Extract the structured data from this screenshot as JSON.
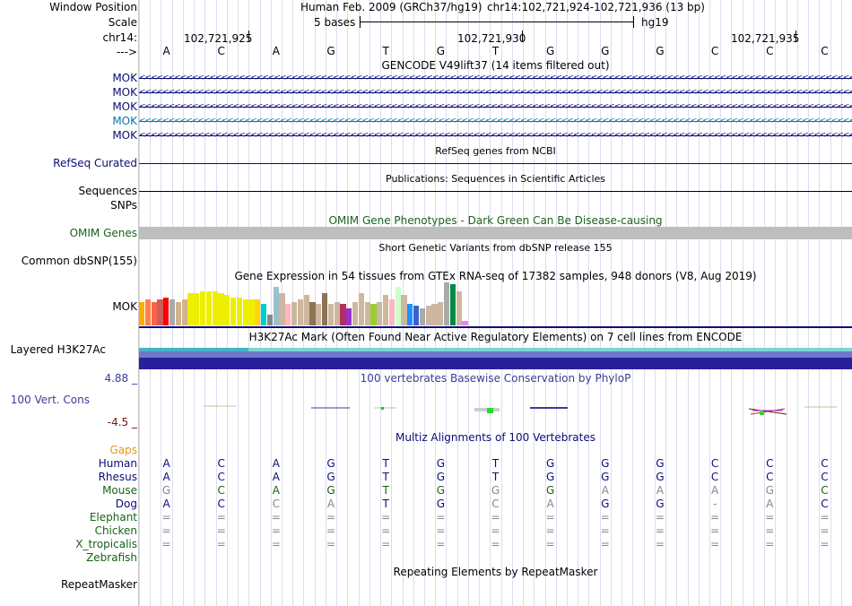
{
  "header": {
    "window_position_label": "Window Position",
    "scale_label": "Scale",
    "chrom_label": "chr14:",
    "strand_label": "--->",
    "assembly_text": "Human Feb. 2009 (GRCh37/hg19)",
    "position_text": "chr14:102,721,924-102,721,936 (13 bp)",
    "scale_text": "5 bases",
    "db_text": "hg19",
    "coords": [
      "102,721,925",
      "102,721,930",
      "102,721,935"
    ]
  },
  "sequence": [
    "A",
    "C",
    "A",
    "G",
    "T",
    "G",
    "T",
    "G",
    "G",
    "G",
    "C",
    "C",
    "C"
  ],
  "gencode": {
    "title": "GENCODE V49lift37 (14 items filtered out)",
    "genes": [
      {
        "label": "MOK",
        "color": "#0c0c78"
      },
      {
        "label": "MOK",
        "color": "#0c0c78"
      },
      {
        "label": "MOK",
        "color": "#0c0c78"
      },
      {
        "label": "MOK",
        "color": "#0c74a8"
      },
      {
        "label": "MOK",
        "color": "#0c0c78"
      }
    ]
  },
  "refseq": {
    "title": "RefSeq genes from NCBI",
    "label": "RefSeq Curated"
  },
  "publications": {
    "title": "Publications: Sequences in Scientific Articles",
    "label": "Sequences"
  },
  "snps_label": "SNPs",
  "omim": {
    "title": "OMIM Gene Phenotypes - Dark Green Can Be Disease-causing",
    "label": "OMIM Genes",
    "color": "#1a641a"
  },
  "dbsnp": {
    "title": "Short Genetic Variants from dbSNP release 155",
    "label": "Common dbSNP(155)"
  },
  "gtex": {
    "title": "Gene Expression in 54 tissues from GTEx RNA-seq of 17382 samples, 948 donors (V8, Aug 2019)",
    "label": "MOK",
    "bars": [
      {
        "v": 0.55,
        "c": "#ffaa00"
      },
      {
        "v": 0.6,
        "c": "#ff7f50"
      },
      {
        "v": 0.55,
        "c": "#ff6347"
      },
      {
        "v": 0.6,
        "c": "#cd5c5c"
      },
      {
        "v": 0.65,
        "c": "#ff0000"
      },
      {
        "v": 0.6,
        "c": "#aaaaaa"
      },
      {
        "v": 0.55,
        "c": "#d2b48c"
      },
      {
        "v": 0.6,
        "c": "#d2b48c"
      },
      {
        "v": 0.75,
        "c": "#eeee00"
      },
      {
        "v": 0.75,
        "c": "#eeee00"
      },
      {
        "v": 0.8,
        "c": "#eeee00"
      },
      {
        "v": 0.8,
        "c": "#eeee00"
      },
      {
        "v": 0.8,
        "c": "#eeee00"
      },
      {
        "v": 0.75,
        "c": "#eeee00"
      },
      {
        "v": 0.7,
        "c": "#eeee00"
      },
      {
        "v": 0.65,
        "c": "#eeee00"
      },
      {
        "v": 0.65,
        "c": "#eeee00"
      },
      {
        "v": 0.6,
        "c": "#eeee00"
      },
      {
        "v": 0.6,
        "c": "#eeee00"
      },
      {
        "v": 0.6,
        "c": "#ffd700"
      },
      {
        "v": 0.5,
        "c": "#00cdcd"
      },
      {
        "v": 0.25,
        "c": "#888888"
      },
      {
        "v": 0.9,
        "c": "#9ac0cd"
      },
      {
        "v": 0.75,
        "c": "#cdb79e"
      },
      {
        "v": 0.5,
        "c": "#ffb6c1"
      },
      {
        "v": 0.55,
        "c": "#cdb79e"
      },
      {
        "v": 0.6,
        "c": "#cdb79e"
      },
      {
        "v": 0.7,
        "c": "#cdb79e"
      },
      {
        "v": 0.55,
        "c": "#8b7355"
      },
      {
        "v": 0.5,
        "c": "#cdb79e"
      },
      {
        "v": 0.75,
        "c": "#8b7355"
      },
      {
        "v": 0.5,
        "c": "#cdb79e"
      },
      {
        "v": 0.55,
        "c": "#cdb79e"
      },
      {
        "v": 0.5,
        "c": "#b03060"
      },
      {
        "v": 0.4,
        "c": "#9932cc"
      },
      {
        "v": 0.55,
        "c": "#cdb79e"
      },
      {
        "v": 0.75,
        "c": "#cdb79e"
      },
      {
        "v": 0.55,
        "c": "#cdb79e"
      },
      {
        "v": 0.5,
        "c": "#9acd32"
      },
      {
        "v": 0.55,
        "c": "#cdb79e"
      },
      {
        "v": 0.7,
        "c": "#cdb79e"
      },
      {
        "v": 0.6,
        "c": "#ffb6c1"
      },
      {
        "v": 0.9,
        "c": "#ccffcc"
      },
      {
        "v": 0.7,
        "c": "#cdb79e"
      },
      {
        "v": 0.5,
        "c": "#1e90ff"
      },
      {
        "v": 0.45,
        "c": "#3a5fcd"
      },
      {
        "v": 0.4,
        "c": "#aaaaaa"
      },
      {
        "v": 0.45,
        "c": "#cdb79e"
      },
      {
        "v": 0.5,
        "c": "#cdb79e"
      },
      {
        "v": 0.55,
        "c": "#cdb79e"
      },
      {
        "v": 1.0,
        "c": "#aaaaaa"
      },
      {
        "v": 0.95,
        "c": "#008b45"
      },
      {
        "v": 0.8,
        "c": "#cdb79e"
      },
      {
        "v": 0.1,
        "c": "#ee82ee"
      }
    ]
  },
  "h3k27ac": {
    "title": "H3K27Ac Mark (Often Found Near Active Regulatory Elements) on 7 cell lines from ENCODE",
    "label": "Layered H3K27Ac"
  },
  "phylop": {
    "title": "100 vertebrates Basewise Conservation by PhyloP",
    "label": "100 Vert. Cons",
    "max_label": "4.88 _",
    "min_label": "-4.5 _"
  },
  "multiz": {
    "title": "Multiz Alignments of 100 Vertebrates",
    "gaps_label": "Gaps",
    "species": [
      {
        "name": "Human",
        "color": "#0c0c78",
        "bases": [
          "A",
          "C",
          "A",
          "G",
          "T",
          "G",
          "T",
          "G",
          "G",
          "G",
          "C",
          "C",
          "C"
        ]
      },
      {
        "name": "Rhesus",
        "color": "#0c0c78",
        "bases": [
          "A",
          "C",
          "A",
          "G",
          "T",
          "G",
          "T",
          "G",
          "G",
          "G",
          "C",
          "C",
          "C"
        ]
      },
      {
        "name": "Mouse",
        "color": "#146414",
        "bases": [
          "G",
          "C",
          "A",
          "G",
          "T",
          "G",
          "G",
          "G",
          "A",
          "A",
          "A",
          "G",
          "C"
        ]
      },
      {
        "name": "Dog",
        "color": "#0c0c78",
        "bases": [
          "A",
          "C",
          "C",
          "A",
          "T",
          "G",
          "C",
          "A",
          "G",
          "G",
          "-",
          "A",
          "C"
        ]
      },
      {
        "name": "Elephant",
        "color": "#146414",
        "bases": [
          "=",
          "=",
          "=",
          "=",
          "=",
          "=",
          "=",
          "=",
          "=",
          "=",
          "=",
          "=",
          "="
        ]
      },
      {
        "name": "Chicken",
        "color": "#146414",
        "bases": [
          "=",
          "=",
          "=",
          "=",
          "=",
          "=",
          "=",
          "=",
          "=",
          "=",
          "=",
          "=",
          "="
        ]
      },
      {
        "name": "X_tropicalis",
        "color": "#146414",
        "bases": [
          "=",
          "=",
          "=",
          "=",
          "=",
          "=",
          "=",
          "=",
          "=",
          "=",
          "=",
          "=",
          "="
        ]
      },
      {
        "name": "Zebrafish",
        "color": "#146414",
        "bases": []
      }
    ],
    "diff_mask": {
      "Mouse": [
        1,
        0,
        0,
        0,
        0,
        0,
        1,
        0,
        1,
        1,
        1,
        1,
        0
      ],
      "Dog": [
        0,
        0,
        1,
        1,
        0,
        0,
        1,
        1,
        0,
        0,
        1,
        1,
        0
      ]
    }
  },
  "repeatmasker": {
    "title": "Repeating Elements by RepeatMasker",
    "label": "RepeatMasker"
  },
  "colors": {
    "navy": "#0c0c78",
    "green": "#146414",
    "orange": "#e6961e",
    "maroon": "#781414",
    "phylop_blue": "#3c3c96",
    "mismatch_gray": "#888888"
  }
}
